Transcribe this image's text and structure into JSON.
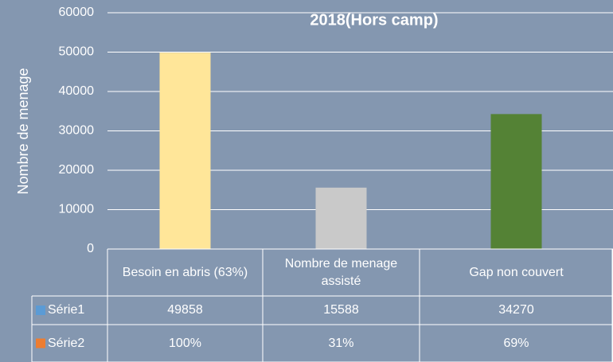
{
  "chart_data": {
    "type": "bar",
    "title": "2018(Hors camp)",
    "y_label": "Nombre de menage",
    "categories": [
      "Besoin en abris (63%)",
      "Nombre de menage assisté",
      "Gap non couvert"
    ],
    "series": [
      {
        "name": "Série1",
        "color": "#5b9bd5",
        "point_colors": [
          "#ffe699",
          "#c9c9c9",
          "#548235"
        ],
        "values": [
          49858,
          15588,
          34270
        ]
      },
      {
        "name": "Série2",
        "color": "#ed7d31",
        "values": [
          100,
          31,
          69
        ],
        "value_labels": [
          "100%",
          "31%",
          "69%"
        ],
        "axis": "y2"
      }
    ],
    "ylim": [
      0,
      60000
    ],
    "yticks": [
      0,
      10000,
      20000,
      30000,
      40000,
      50000,
      60000
    ],
    "grid": true,
    "data_table": true
  }
}
